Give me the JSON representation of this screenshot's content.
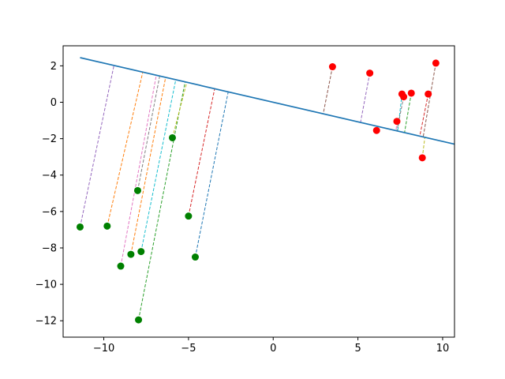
{
  "chart_data": {
    "type": "scatter",
    "title": "",
    "xlabel": "",
    "ylabel": "",
    "xlim": [
      -12.4,
      10.7
    ],
    "ylim": [
      -12.9,
      3.1
    ],
    "x_ticks": [
      -10,
      -5,
      0,
      5,
      10
    ],
    "y_ticks": [
      2,
      0,
      -2,
      -4,
      -6,
      -8,
      -10,
      -12
    ],
    "x_tick_labels": [
      "−10",
      "−5",
      "0",
      "5",
      "10"
    ],
    "y_tick_labels": [
      "2",
      "0",
      "−2",
      "−4",
      "−6",
      "−8",
      "−10",
      "−12"
    ],
    "grid": false,
    "line": {
      "x": [
        -11.4,
        10.7
      ],
      "y": [
        2.45,
        -2.3
      ],
      "color": "#1f77b4"
    },
    "series": [
      {
        "color": "#008000",
        "points": [
          {
            "x": -11.4,
            "y": -6.85
          },
          {
            "x": -9.8,
            "y": -6.8
          },
          {
            "x": -9.0,
            "y": -9.0
          },
          {
            "x": -8.4,
            "y": -8.35
          },
          {
            "x": -8.0,
            "y": -4.85
          },
          {
            "x": -7.8,
            "y": -8.2
          },
          {
            "x": -7.95,
            "y": -11.95
          },
          {
            "x": -5.95,
            "y": -1.95
          },
          {
            "x": -5.0,
            "y": -6.25
          },
          {
            "x": -4.6,
            "y": -8.5
          }
        ]
      },
      {
        "color": "#ff0000",
        "points": [
          {
            "x": 3.5,
            "y": 1.95
          },
          {
            "x": 5.7,
            "y": 1.6
          },
          {
            "x": 6.1,
            "y": -1.55
          },
          {
            "x": 7.3,
            "y": -1.05
          },
          {
            "x": 7.6,
            "y": 0.45
          },
          {
            "x": 7.7,
            "y": 0.3
          },
          {
            "x": 8.15,
            "y": 0.5
          },
          {
            "x": 8.8,
            "y": -3.05
          },
          {
            "x": 9.15,
            "y": 0.45
          },
          {
            "x": 9.6,
            "y": 2.15
          }
        ]
      }
    ],
    "projections": [
      {
        "from": [
          -11.4,
          -6.85
        ],
        "to": [
          -9.4,
          2.02
        ],
        "color": "#9467bd"
      },
      {
        "from": [
          -9.8,
          -6.8
        ],
        "to": [
          -7.7,
          1.65
        ],
        "color": "#ff7f0e"
      },
      {
        "from": [
          -9.0,
          -9.0
        ],
        "to": [
          -6.9,
          1.48
        ],
        "color": "#e377c2"
      },
      {
        "from": [
          -8.4,
          -8.35
        ],
        "to": [
          -6.35,
          1.37
        ],
        "color": "#ff7f0e"
      },
      {
        "from": [
          -8.0,
          -4.85
        ],
        "to": [
          -6.7,
          1.44
        ],
        "color": "#7f7f7f"
      },
      {
        "from": [
          -7.8,
          -8.2
        ],
        "to": [
          -5.75,
          1.24
        ],
        "color": "#17becf"
      },
      {
        "from": [
          -7.95,
          -11.95
        ],
        "to": [
          -5.2,
          1.12
        ],
        "color": "#2ca02c"
      },
      {
        "from": [
          -5.95,
          -1.95
        ],
        "to": [
          -5.1,
          1.1
        ],
        "color": "#bcbd22"
      },
      {
        "from": [
          -5.0,
          -6.25
        ],
        "to": [
          -3.45,
          0.77
        ],
        "color": "#d62728"
      },
      {
        "from": [
          -4.6,
          -8.5
        ],
        "to": [
          -2.65,
          0.6
        ],
        "color": "#1f77b4"
      },
      {
        "from": [
          3.5,
          1.95
        ],
        "to": [
          2.95,
          -0.64
        ],
        "color": "#8c564b"
      },
      {
        "from": [
          5.7,
          1.6
        ],
        "to": [
          5.15,
          -1.12
        ],
        "color": "#9467bd"
      },
      {
        "from": [
          6.1,
          -1.55
        ],
        "to": [
          6.05,
          -1.3
        ],
        "color": "#ff7f0e"
      },
      {
        "from": [
          7.3,
          -1.05
        ],
        "to": [
          7.25,
          -1.56
        ],
        "color": "#e377c2"
      },
      {
        "from": [
          7.6,
          0.45
        ],
        "to": [
          7.35,
          -1.58
        ],
        "color": "#17becf"
      },
      {
        "from": [
          7.7,
          0.3
        ],
        "to": [
          7.3,
          -1.57
        ],
        "color": "#7f7f7f"
      },
      {
        "from": [
          8.15,
          0.5
        ],
        "to": [
          7.75,
          -1.67
        ],
        "color": "#2ca02c"
      },
      {
        "from": [
          8.8,
          -3.05
        ],
        "to": [
          8.95,
          -1.93
        ],
        "color": "#bcbd22"
      },
      {
        "from": [
          9.15,
          0.45
        ],
        "to": [
          8.65,
          -1.86
        ],
        "color": "#d62728"
      },
      {
        "from": [
          9.6,
          2.15
        ],
        "to": [
          8.85,
          -1.91
        ],
        "color": "#8c564b"
      }
    ]
  }
}
